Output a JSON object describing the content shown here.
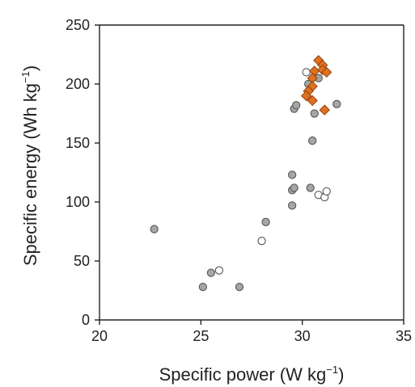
{
  "chart_data": {
    "type": "scatter",
    "title": "",
    "xlabel": "Specific power (W kg",
    "xlabel_sup": "−1",
    "xlabel_end": ")",
    "ylabel": "Specific energy (Wh kg",
    "ylabel_sup": "−1",
    "ylabel_end": ")",
    "xlim": [
      20,
      35
    ],
    "ylim": [
      0,
      250
    ],
    "xticks": [
      20,
      25,
      30,
      35
    ],
    "yticks": [
      0,
      50,
      100,
      150,
      200,
      250
    ],
    "xtick_labels": [
      "20",
      "25",
      "30",
      "35"
    ],
    "ytick_labels": [
      "0",
      "50",
      "100",
      "150",
      "200",
      "250"
    ],
    "grid": false,
    "series": [
      {
        "marker": "circle",
        "fill": "#a6a6a6",
        "stroke": "#555555",
        "points": [
          [
            22.7,
            77
          ],
          [
            25.1,
            28
          ],
          [
            25.5,
            40
          ],
          [
            26.9,
            28
          ],
          [
            28.2,
            83
          ],
          [
            29.5,
            97
          ],
          [
            29.5,
            110
          ],
          [
            29.6,
            112
          ],
          [
            29.5,
            123
          ],
          [
            30.4,
            112
          ],
          [
            30.5,
            152
          ],
          [
            30.6,
            175
          ],
          [
            29.6,
            179
          ],
          [
            29.7,
            182
          ],
          [
            31.7,
            183
          ],
          [
            30.3,
            200
          ],
          [
            30.8,
            205
          ]
        ]
      },
      {
        "marker": "circle",
        "fill": "#ffffff",
        "stroke": "#555555",
        "points": [
          [
            25.9,
            42
          ],
          [
            28.0,
            67
          ],
          [
            30.8,
            106
          ],
          [
            31.1,
            104
          ],
          [
            31.2,
            109
          ],
          [
            30.2,
            210
          ]
        ]
      },
      {
        "marker": "diamond",
        "fill": "#e07020",
        "stroke": "#8a3d0a",
        "points": [
          [
            30.8,
            220
          ],
          [
            31.0,
            216
          ],
          [
            30.6,
            211
          ],
          [
            31.0,
            212
          ],
          [
            31.2,
            210
          ],
          [
            30.5,
            205
          ],
          [
            30.5,
            198
          ],
          [
            30.3,
            194
          ],
          [
            30.2,
            190
          ],
          [
            30.5,
            186
          ],
          [
            31.1,
            178
          ]
        ]
      }
    ]
  }
}
